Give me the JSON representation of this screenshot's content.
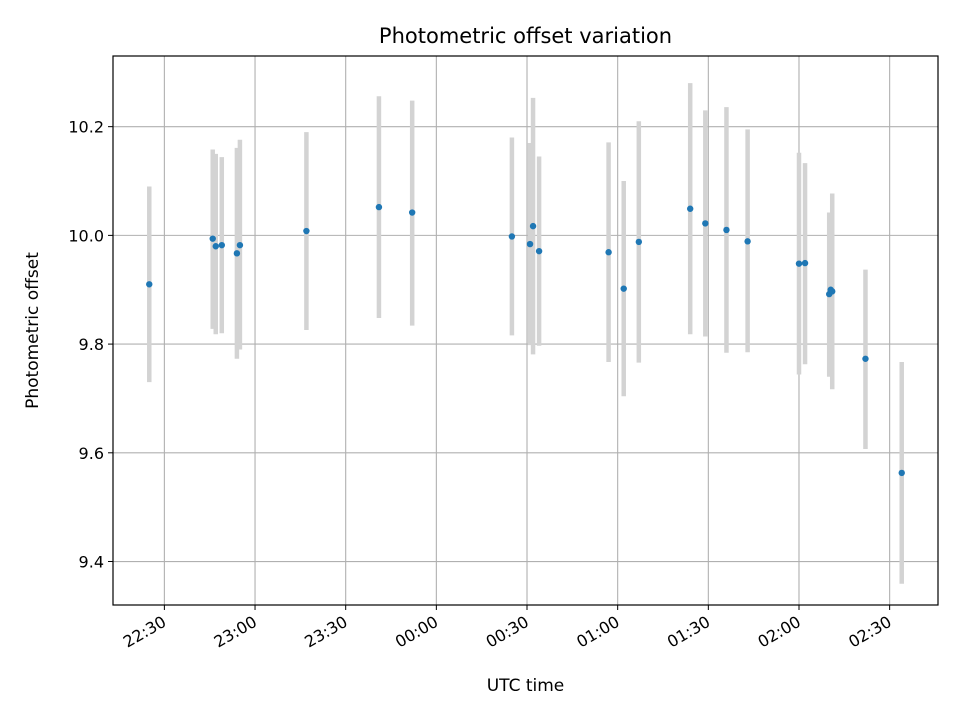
{
  "chart_data": {
    "type": "scatter",
    "title": "Photometric offset variation",
    "xlabel": "UTC time",
    "ylabel": "Photometric offset",
    "x_ticks": [
      {
        "t": "2024-01-01T22:30:00",
        "label": "22:30"
      },
      {
        "t": "2024-01-01T23:00:00",
        "label": "23:00"
      },
      {
        "t": "2024-01-01T23:30:00",
        "label": "23:30"
      },
      {
        "t": "2024-01-02T00:00:00",
        "label": "00:00"
      },
      {
        "t": "2024-01-02T00:30:00",
        "label": "00:30"
      },
      {
        "t": "2024-01-02T01:00:00",
        "label": "01:00"
      },
      {
        "t": "2024-01-02T01:30:00",
        "label": "01:30"
      },
      {
        "t": "2024-01-02T02:00:00",
        "label": "02:00"
      },
      {
        "t": "2024-01-02T02:30:00",
        "label": "02:30"
      }
    ],
    "y_ticks": [
      9.4,
      9.6,
      9.8,
      10.0,
      10.2
    ],
    "xlim": [
      "2024-01-01T22:13:00",
      "2024-01-02T02:46:00"
    ],
    "ylim": [
      9.32,
      10.33
    ],
    "grid": true,
    "colors": {
      "points": "#1f77b4",
      "error_bars": "#d3d3d3",
      "grid": "#b0b0b0"
    },
    "series": [
      {
        "points": [
          {
            "t": "2024-01-01T22:25:00",
            "y": 9.91,
            "lo": 9.73,
            "hi": 10.09
          },
          {
            "t": "2024-01-01T22:46:00",
            "y": 9.994,
            "lo": 9.828,
            "hi": 10.158
          },
          {
            "t": "2024-01-01T22:47:00",
            "y": 9.98,
            "lo": 9.818,
            "hi": 10.15
          },
          {
            "t": "2024-01-01T22:49:00",
            "y": 9.982,
            "lo": 9.82,
            "hi": 10.144
          },
          {
            "t": "2024-01-01T22:54:00",
            "y": 9.967,
            "lo": 9.773,
            "hi": 10.161
          },
          {
            "t": "2024-01-01T22:55:00",
            "y": 9.982,
            "lo": 9.79,
            "hi": 10.176
          },
          {
            "t": "2024-01-01T23:17:00",
            "y": 10.008,
            "lo": 9.826,
            "hi": 10.19
          },
          {
            "t": "2024-01-01T23:41:00",
            "y": 10.052,
            "lo": 9.848,
            "hi": 10.256
          },
          {
            "t": "2024-01-01T23:52:00",
            "y": 10.042,
            "lo": 9.834,
            "hi": 10.248
          },
          {
            "t": "2024-01-02T00:25:00",
            "y": 9.998,
            "lo": 9.816,
            "hi": 10.18
          },
          {
            "t": "2024-01-02T00:31:00",
            "y": 9.984,
            "lo": 9.798,
            "hi": 10.17
          },
          {
            "t": "2024-01-02T00:32:00",
            "y": 10.017,
            "lo": 9.781,
            "hi": 10.253
          },
          {
            "t": "2024-01-02T00:34:00",
            "y": 9.971,
            "lo": 9.797,
            "hi": 10.145
          },
          {
            "t": "2024-01-02T00:57:00",
            "y": 9.969,
            "lo": 9.767,
            "hi": 10.171
          },
          {
            "t": "2024-01-02T01:02:00",
            "y": 9.902,
            "lo": 9.704,
            "hi": 10.1
          },
          {
            "t": "2024-01-02T01:07:00",
            "y": 9.988,
            "lo": 9.766,
            "hi": 10.21
          },
          {
            "t": "2024-01-02T01:24:00",
            "y": 10.049,
            "lo": 9.818,
            "hi": 10.28
          },
          {
            "t": "2024-01-02T01:29:00",
            "y": 10.022,
            "lo": 9.814,
            "hi": 10.23
          },
          {
            "t": "2024-01-02T01:36:00",
            "y": 10.01,
            "lo": 9.784,
            "hi": 10.236
          },
          {
            "t": "2024-01-02T01:43:00",
            "y": 9.989,
            "lo": 9.785,
            "hi": 10.195
          },
          {
            "t": "2024-01-02T02:00:00",
            "y": 9.948,
            "lo": 9.744,
            "hi": 10.152
          },
          {
            "t": "2024-01-02T02:02:00",
            "y": 9.949,
            "lo": 9.763,
            "hi": 10.133
          },
          {
            "t": "2024-01-02T02:10:00",
            "y": 9.892,
            "lo": 9.74,
            "hi": 10.042
          },
          {
            "t": "2024-01-02T02:10:30",
            "y": 9.9,
            "lo": 9.76,
            "hi": 10.04
          },
          {
            "t": "2024-01-02T02:11:00",
            "y": 9.897,
            "lo": 9.717,
            "hi": 10.077
          },
          {
            "t": "2024-01-02T02:22:00",
            "y": 9.773,
            "lo": 9.607,
            "hi": 9.937
          },
          {
            "t": "2024-01-02T02:34:00",
            "y": 9.563,
            "lo": 9.359,
            "hi": 9.767
          }
        ]
      }
    ]
  }
}
